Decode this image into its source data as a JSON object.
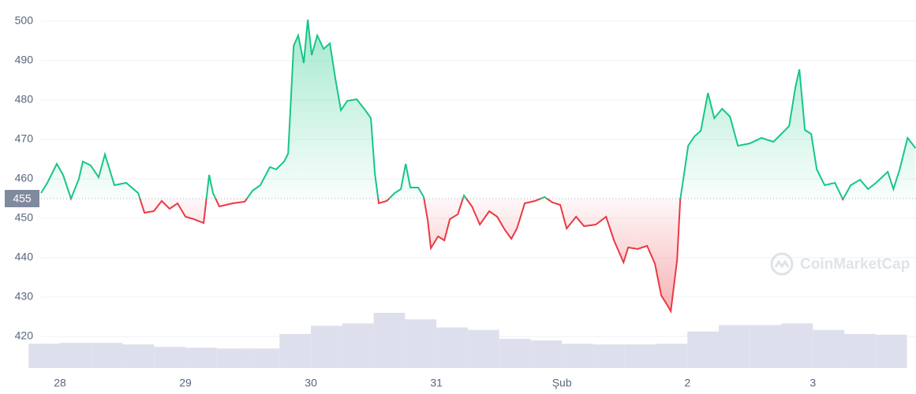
{
  "chart_data": {
    "type": "line",
    "x": [
      27.849,
      27.899,
      27.975,
      28.025,
      28.088,
      28.151,
      28.182,
      28.245,
      28.308,
      28.358,
      28.434,
      28.528,
      28.623,
      28.673,
      28.748,
      28.811,
      28.874,
      28.937,
      29.0,
      29.063,
      29.145,
      29.189,
      29.22,
      29.27,
      29.377,
      29.472,
      29.535,
      29.597,
      29.673,
      29.723,
      29.786,
      29.818,
      29.862,
      29.899,
      29.943,
      29.975,
      30.006,
      30.05,
      30.101,
      30.151,
      30.195,
      30.239,
      30.289,
      30.365,
      30.434,
      30.478,
      30.509,
      30.541,
      30.604,
      30.667,
      30.717,
      30.755,
      30.792,
      30.855,
      30.899,
      30.931,
      30.956,
      31.013,
      31.063,
      31.107,
      31.17,
      31.22,
      31.283,
      31.346,
      31.421,
      31.484,
      31.547,
      31.597,
      31.642,
      31.704,
      31.786,
      31.862,
      31.925,
      31.987,
      32.038,
      32.113,
      32.176,
      32.27,
      32.352,
      32.415,
      32.491,
      32.528,
      32.604,
      32.679,
      32.742,
      32.792,
      32.843,
      32.868,
      32.918,
      32.943,
      32.969,
      33.006,
      33.057,
      33.107,
      33.164,
      33.214,
      33.277,
      33.34,
      33.403,
      33.497,
      33.591,
      33.686,
      33.749,
      33.811,
      33.862,
      33.893,
      33.937,
      33.987,
      34.031,
      34.094,
      34.176,
      34.239,
      34.302,
      34.377,
      34.44,
      34.503,
      34.597,
      34.642,
      34.692,
      34.755,
      34.818
    ],
    "values": [
      456.4,
      459,
      463.8,
      461,
      455,
      460,
      464.4,
      463.4,
      460.4,
      466.2,
      458.4,
      459,
      456.4,
      451.4,
      451.8,
      454.4,
      452.4,
      453.8,
      450.4,
      449.8,
      448.8,
      461,
      456.4,
      453,
      453.8,
      454.2,
      457,
      458.4,
      463,
      462.4,
      464.4,
      466.4,
      493.8,
      496.4,
      489.4,
      500.4,
      491.4,
      496.4,
      493,
      494.4,
      485.4,
      477.4,
      479.8,
      480.2,
      477.4,
      475.4,
      461.4,
      453.8,
      454.4,
      456.4,
      457.4,
      463.8,
      457.8,
      457.8,
      455.4,
      449.4,
      442.4,
      445.4,
      444.4,
      449.8,
      451,
      455.8,
      453,
      448.4,
      451.8,
      450.4,
      447,
      444.8,
      447.4,
      453.8,
      454.4,
      455.4,
      454,
      453.4,
      447.4,
      450.4,
      448,
      448.4,
      450.4,
      444.4,
      438.8,
      442.6,
      442.2,
      443,
      438.4,
      430.4,
      427.8,
      426.4,
      439.4,
      454.8,
      460.2,
      468.4,
      470.8,
      472.2,
      481.8,
      475.4,
      477.8,
      475.8,
      468.4,
      469,
      470.4,
      469.4,
      471.4,
      473.4,
      483.4,
      487.8,
      472.4,
      471.4,
      462.4,
      458.4,
      459,
      454.8,
      458.4,
      459.8,
      457.4,
      459,
      461.8,
      457.4,
      462.4,
      470.4,
      467.8
    ],
    "baseline": 455,
    "color_up": "#16c784",
    "color_down": "#ea3943",
    "volume": {
      "x": [
        27.875,
        28.125,
        28.375,
        28.625,
        28.875,
        29.125,
        29.375,
        29.625,
        29.875,
        30.125,
        30.375,
        30.625,
        30.875,
        31.125,
        31.375,
        31.625,
        31.875,
        32.125,
        32.375,
        32.625,
        32.875,
        33.125,
        33.375,
        33.625,
        33.875,
        34.125,
        34.375,
        34.625
      ],
      "values": [
        30,
        31,
        31,
        29,
        26,
        25,
        24,
        24,
        42,
        52,
        55,
        68,
        60,
        50,
        47,
        36,
        34,
        30,
        29,
        29,
        30,
        45,
        53,
        53,
        55,
        47,
        42,
        41
      ],
      "color": "#dde0ec"
    },
    "xlim": [
      27.849,
      34.822
    ],
    "ylim": [
      412,
      505.4
    ],
    "xticks": [
      28,
      29,
      30,
      31,
      {
        "value": 32,
        "label": "Şub"
      },
      {
        "value": 33,
        "label": "2"
      },
      {
        "value": 34,
        "label": "3"
      }
    ],
    "yticks": [
      420,
      430,
      440,
      450,
      460,
      470,
      480,
      490,
      500
    ],
    "grid": true,
    "watermark": "CoinMarketCap"
  }
}
